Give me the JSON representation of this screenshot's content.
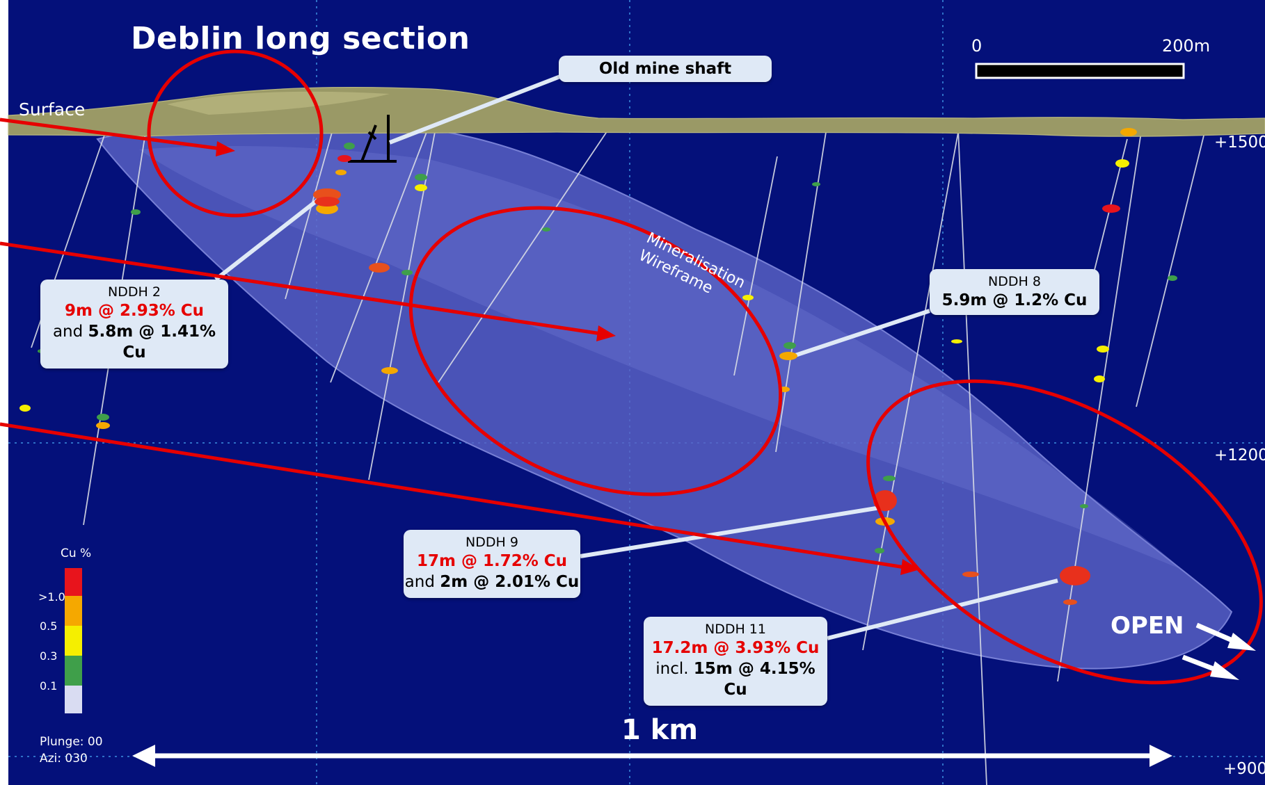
{
  "title": "Deblin long section",
  "surface_label": "Surface",
  "elevation_labels": [
    "+1500",
    "+1200",
    "+900"
  ],
  "scale_bar": {
    "start": "0",
    "end": "200m"
  },
  "wireframe_label": [
    "Mineralisation",
    "Wireframe"
  ],
  "shaft_label": "Old mine shaft",
  "callouts": {
    "nddh2": {
      "hole": "NDDH 2",
      "primary": "9m @ 2.93% Cu",
      "secondary_prefix": "and ",
      "secondary": "5.8m @ 1.41% Cu"
    },
    "nddh8": {
      "hole": "NDDH 8",
      "primary": "5.9m @ 1.2% Cu"
    },
    "nddh9": {
      "hole": "NDDH 9",
      "primary": "17m @ 1.72% Cu",
      "secondary_prefix": "and ",
      "secondary": "2m @ 2.01% Cu"
    },
    "nddh11": {
      "hole": "NDDH 11",
      "primary": "17.2m @ 3.93% Cu",
      "secondary_prefix": "incl. ",
      "secondary": "15m @ 4.15% Cu"
    }
  },
  "legend": {
    "title": "Cu %",
    "labels": [
      ">1.0",
      "0.5",
      "0.3",
      "0.1"
    ],
    "colors": [
      "#e8141c",
      "#f5a800",
      "#f5ef00",
      "#3f9f4a",
      "#d9dcf2"
    ]
  },
  "open_label": "OPEN",
  "distance_label": "1 km",
  "view": {
    "plunge": "Plunge: 00",
    "azimuth": "Azi: 030"
  },
  "colors": {
    "background": "#04107a",
    "wireframe": "#5a63c4",
    "surface": "#9a9966",
    "annotation_red": "#e60000",
    "callout_bg": "#dfe9f6"
  }
}
